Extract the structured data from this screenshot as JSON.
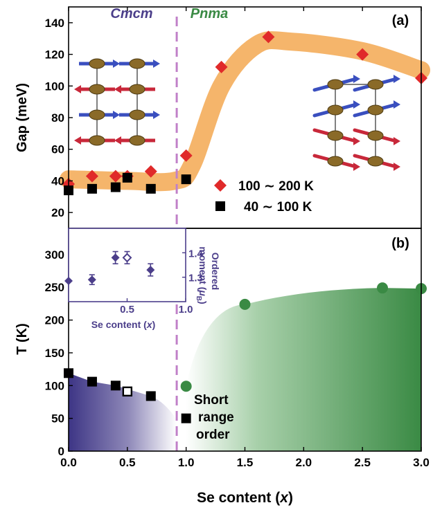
{
  "colors": {
    "gap_100_200": "#e02a2a",
    "gap_40_100": "#000000",
    "band": "#f5b56b",
    "cmcm": "#4b3e8a",
    "pnma": "#3a8a44",
    "divider": "#c080c8",
    "cmcm_fill_start": "#3d3585",
    "pnma_fill_end": "#3a8a44"
  },
  "chart_data": [
    {
      "id": "a",
      "type": "scatter",
      "panel_label": "(a)",
      "ylabel": "Gap (meV)",
      "xlim": [
        0,
        3
      ],
      "ylim": [
        10,
        150
      ],
      "yticks": [
        20,
        40,
        60,
        80,
        100,
        120,
        140
      ],
      "phase_labels": [
        "Cmcm",
        "Pnma"
      ],
      "series": [
        {
          "name": "100 ∼ 200 K",
          "marker": "diamond",
          "color": "#e02a2a",
          "x": [
            0.0,
            0.2,
            0.4,
            0.5,
            0.7,
            1.0,
            1.3,
            1.7,
            2.5,
            3.0
          ],
          "y": [
            38,
            43,
            43,
            43,
            46,
            56,
            112,
            131,
            120,
            105
          ]
        },
        {
          "name": "40 ∼ 100 K",
          "marker": "square",
          "color": "#000000",
          "x": [
            0.0,
            0.2,
            0.4,
            0.5,
            0.7,
            1.0
          ],
          "y": [
            34,
            35,
            36,
            42,
            35,
            41
          ]
        }
      ],
      "guide_band": {
        "x": [
          0.0,
          0.5,
          0.9,
          1.05,
          1.3,
          1.6,
          1.9,
          2.5,
          3.0
        ],
        "y": [
          41,
          40,
          40,
          50,
          100,
          126,
          128,
          122,
          110
        ]
      }
    },
    {
      "id": "b",
      "type": "scatter",
      "panel_label": "(b)",
      "xlabel": "Se content (x)",
      "ylabel": "T (K)",
      "xlim": [
        0,
        3
      ],
      "ylim": [
        0,
        340
      ],
      "yticks": [
        0,
        50,
        100,
        150,
        200,
        250,
        300
      ],
      "xticks": [
        0.0,
        0.5,
        1.0,
        1.5,
        2.0,
        2.5,
        3.0
      ],
      "series": [
        {
          "marker": "square",
          "color": "#000000",
          "x": [
            0.0,
            0.2,
            0.4,
            0.7,
            1.0
          ],
          "y": [
            119,
            106,
            100,
            84,
            50
          ]
        },
        {
          "marker": "open-square",
          "color": "#000000",
          "x": [
            0.5
          ],
          "y": [
            91
          ]
        },
        {
          "marker": "circle",
          "color": "#3a8a44",
          "x": [
            1.0,
            1.5,
            2.67,
            3.0
          ],
          "y": [
            99,
            224,
            249,
            248
          ]
        }
      ],
      "annotation": [
        "Short",
        "range",
        "order"
      ]
    },
    {
      "id": "inset",
      "type": "scatter",
      "xlabel": "Se content (x)",
      "ylabel": "Ordered moment (μB)",
      "ylabel_lines": [
        "Ordered",
        "moment (μB)"
      ],
      "xlim": [
        0,
        1
      ],
      "ylim": [
        1.2,
        1.5
      ],
      "yticks": [
        1.3,
        1.4
      ],
      "xticks": [
        0.5,
        1.0
      ],
      "series": [
        {
          "marker": "diamond",
          "color": "#4b3e8a",
          "x": [
            0.0,
            0.2,
            0.4,
            0.7
          ],
          "y": [
            1.285,
            1.29,
            1.38,
            1.33
          ],
          "yerr": [
            0.0,
            0.02,
            0.025,
            0.025
          ]
        },
        {
          "marker": "open-diamond",
          "color": "#4b3e8a",
          "x": [
            0.5
          ],
          "y": [
            1.38
          ],
          "yerr": [
            0.025
          ]
        }
      ]
    }
  ]
}
